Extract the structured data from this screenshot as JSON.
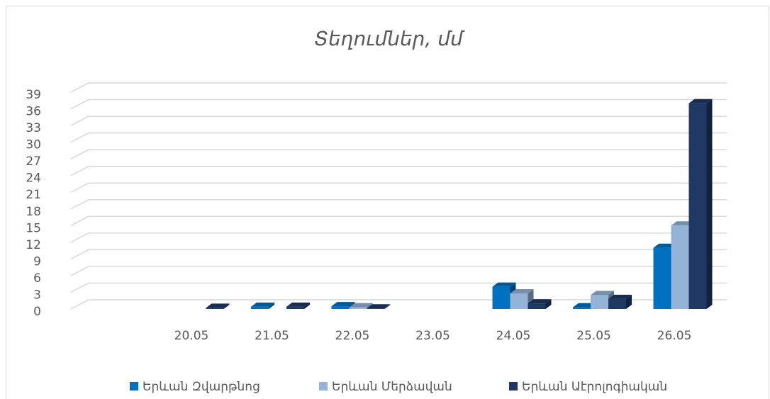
{
  "chart_data": {
    "type": "bar3d",
    "title": "Տեղումներ, մմ",
    "categories": [
      "20.05",
      "21.05",
      "22.05",
      "23.05",
      "24.05",
      "25.05",
      "26.05"
    ],
    "series": [
      {
        "name": "Երևան Զվարթնոց",
        "color": "#0070c0",
        "values": [
          null,
          0.4,
          0.5,
          null,
          4,
          0.3,
          11
        ]
      },
      {
        "name": "Երևան Մերձավան",
        "color": "#95b3d7",
        "values": [
          null,
          null,
          0.3,
          null,
          2.8,
          2.5,
          15
        ]
      },
      {
        "name": "Երևան Աէրոլոգիական",
        "color": "#1f3864",
        "values": [
          0.2,
          0.4,
          0.1,
          null,
          1,
          1.8,
          37
        ]
      }
    ],
    "ylim": [
      0,
      39
    ],
    "yticks": [
      0,
      3,
      6,
      9,
      12,
      15,
      18,
      21,
      24,
      27,
      30,
      33,
      36,
      39
    ],
    "grid": true,
    "legend": "bottom"
  }
}
